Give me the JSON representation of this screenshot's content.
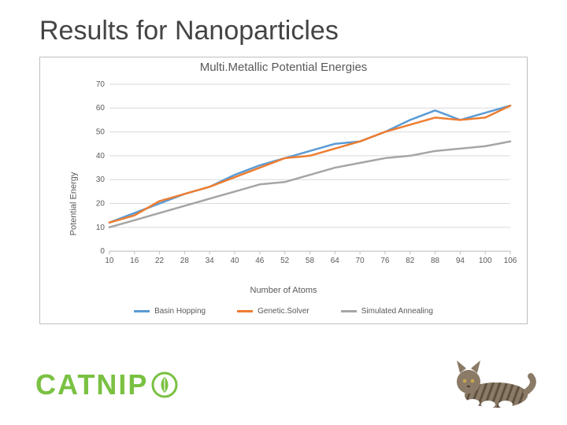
{
  "slide": {
    "title": "Results for Nanoparticles",
    "title_color": "#444444",
    "title_fontsize": 34
  },
  "chart": {
    "type": "line",
    "title": "Multi.Metallic Potential Energies",
    "title_fontsize": 15,
    "title_color": "#595959",
    "xlabel": "Number of Atoms",
    "ylabel": "Potential Energy",
    "label_color": "#595959",
    "label_fontsize": 11,
    "tick_fontsize": 10,
    "tick_color": "#595959",
    "background_color": "#ffffff",
    "frame_color": "#bfbfbf",
    "grid_color": "#d9d9d9",
    "axis_line_color": "#bfbfbf",
    "ylim": [
      0,
      70
    ],
    "ytick_step": 10,
    "yticks": [
      0,
      10,
      20,
      30,
      40,
      50,
      60,
      70
    ],
    "x_categories": [
      10,
      16,
      22,
      28,
      34,
      40,
      46,
      52,
      58,
      64,
      70,
      76,
      82,
      88,
      94,
      100,
      106
    ],
    "line_width": 2.5,
    "marker_size": 0,
    "legend_position": "bottom",
    "series": [
      {
        "name": "Basin Hopping",
        "color": "#5b9bd5",
        "values": [
          12,
          16,
          20,
          24,
          27,
          32,
          36,
          39,
          42,
          45,
          46,
          50,
          55,
          59,
          55,
          58,
          61
        ]
      },
      {
        "name": "Genetic.Solver",
        "color": "#ed7d31",
        "values": [
          12,
          15,
          21,
          24,
          27,
          31,
          35,
          39,
          40,
          43,
          46,
          50,
          53,
          56,
          55,
          56,
          61
        ]
      },
      {
        "name": "Simulated Annealing",
        "color": "#a5a5a5",
        "values": [
          10,
          13,
          16,
          19,
          22,
          25,
          28,
          29,
          32,
          35,
          37,
          39,
          40,
          42,
          43,
          44,
          46
        ]
      }
    ]
  },
  "footer": {
    "brand_text": "CATNIP",
    "brand_color": "#7ac142",
    "icon_color": "#7ac142",
    "icon_bg": "#ffffff"
  }
}
